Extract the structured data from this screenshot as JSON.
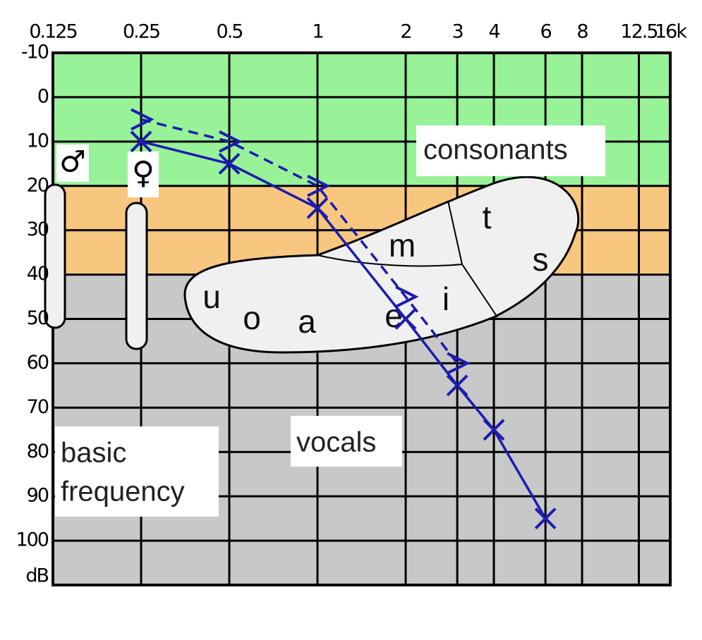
{
  "chart_data": {
    "type": "line",
    "xscale": "log",
    "xlim": [
      0.125,
      16
    ],
    "xticks": [
      0.125,
      0.25,
      0.5,
      1,
      2,
      3,
      4,
      6,
      8,
      12.5,
      {
        "value": 16,
        "label": "16k"
      }
    ],
    "ylim": [
      -10,
      110
    ],
    "y_inverted": true,
    "yticks": [
      -10,
      0,
      10,
      20,
      30,
      40,
      50,
      60,
      70,
      80,
      90,
      100
    ],
    "y_label": "dB",
    "grid": true,
    "bands": [
      {
        "from": -10,
        "to": 20,
        "color": "#98f298"
      },
      {
        "from": 20,
        "to": 40,
        "color": "#f8c77f"
      },
      {
        "from": 40,
        "to": 110,
        "color": "#c8c8c8"
      }
    ],
    "series": [
      {
        "color": "#1c1cb0",
        "style": "solid",
        "marker": "x",
        "x": [
          0.25,
          0.5,
          1,
          2,
          3,
          4,
          6
        ],
        "values": [
          10,
          15,
          25,
          50,
          65,
          75,
          95
        ]
      },
      {
        "color": "#1c1cb0",
        "style": "dashed",
        "marker": ">",
        "x": [
          0.25,
          0.5,
          1,
          2,
          3
        ],
        "values": [
          5,
          10,
          20,
          45,
          60
        ]
      }
    ],
    "annotations": {
      "consonants": "consonants",
      "vocals": "vocals",
      "basic": "basic",
      "frequency": "frequency",
      "male": "♂",
      "female": "♀"
    },
    "speech_sounds": [
      "u",
      "o",
      "a",
      "e",
      "i",
      "m",
      "t",
      "s"
    ]
  }
}
